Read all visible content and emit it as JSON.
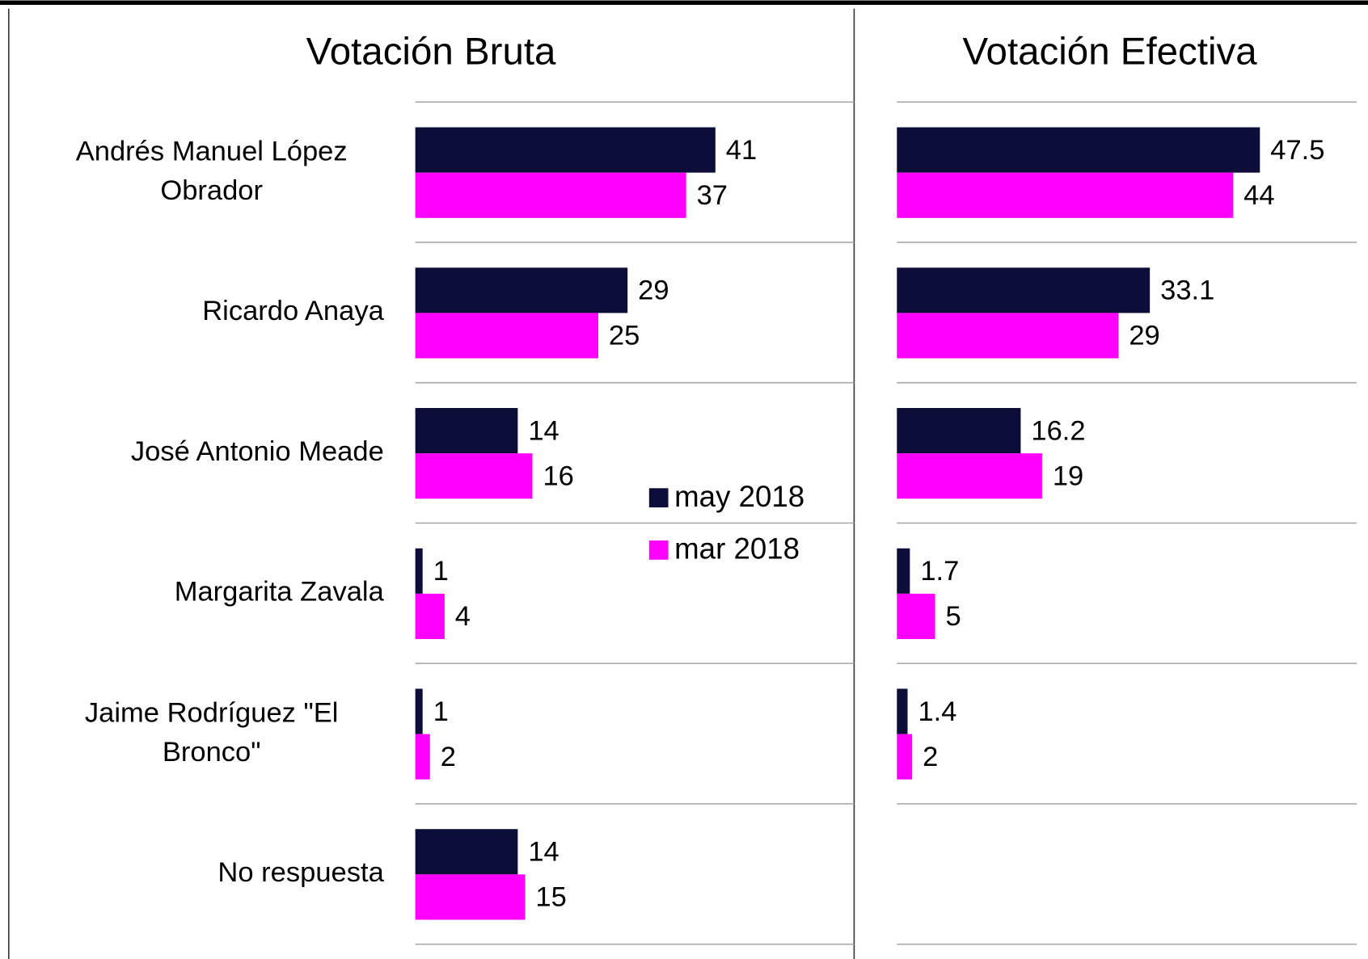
{
  "chart_data": [
    {
      "type": "bar",
      "title": "Votación Bruta",
      "categories": [
        "Andrés Manuel López Obrador",
        "Ricardo Anaya",
        "José Antonio Meade",
        "Margarita Zavala",
        "Jaime Rodríguez \"El Bronco\"",
        "No respuesta"
      ],
      "series": [
        {
          "name": "may 2018",
          "color": "#0d0d3a",
          "values": [
            41,
            29,
            14,
            1,
            1,
            14
          ]
        },
        {
          "name": "mar 2018",
          "color": "#ff00ff",
          "values": [
            37,
            25,
            16,
            4,
            2,
            15
          ]
        }
      ]
    },
    {
      "type": "bar",
      "title": "Votación Efectiva",
      "series": [
        {
          "color": "#0d0d3a",
          "values": [
            47.5,
            33.1,
            16.2,
            1.7,
            1.4
          ]
        },
        {
          "color": "#ff00ff",
          "values": [
            44,
            29,
            19,
            5,
            2
          ]
        }
      ]
    }
  ]
}
